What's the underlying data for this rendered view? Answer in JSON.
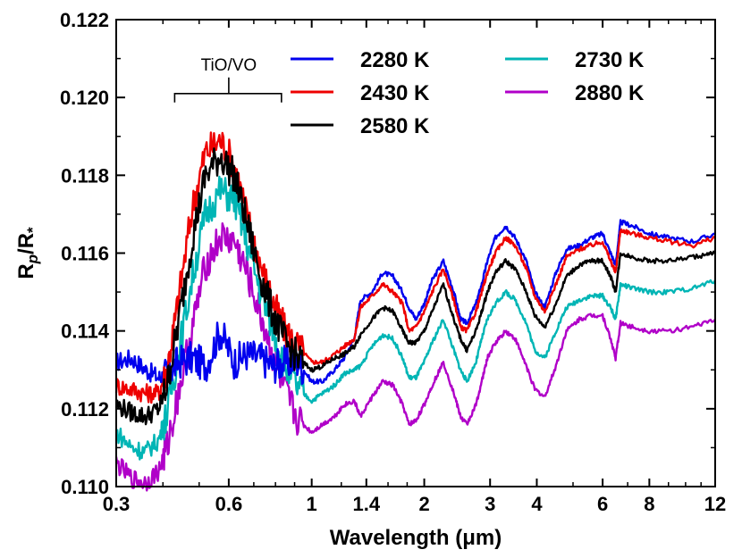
{
  "chart_data": {
    "type": "line",
    "title": "",
    "xlabel": "Wavelength (",
    "xlabel_unit": "μm",
    "xlabel_close": ")",
    "ylabel_main": "R",
    "ylabel_sub": "p",
    "ylabel_mid": "/R",
    "ylabel_star": "*",
    "xscale": "log",
    "xlim": [
      0.3,
      12
    ],
    "ylim": [
      0.11,
      0.122
    ],
    "x_ticks": [
      0.3,
      0.6,
      1,
      1.4,
      2,
      3,
      4,
      6,
      8,
      12
    ],
    "x_tick_labels": [
      "0.3",
      "0.6",
      "1",
      "1.4",
      "2",
      "3",
      "4",
      "6",
      "8",
      "12"
    ],
    "y_ticks": [
      0.11,
      0.112,
      0.114,
      0.116,
      0.118,
      0.12,
      0.122
    ],
    "y_tick_labels": [
      "0.110",
      "0.112",
      "0.114",
      "0.116",
      "0.118",
      "0.120",
      "0.122"
    ],
    "legend_position": "top-right",
    "annotation": {
      "text": "TiO/VO",
      "x_start": 0.43,
      "x_end": 0.83,
      "y": 0.1201
    },
    "series": [
      {
        "name": "2280 K",
        "color": "#0000ee",
        "values": [
          0.1132,
          0.1133,
          0.113,
          0.1128,
          0.1129,
          0.1132,
          0.1133,
          0.1131,
          0.114,
          0.1132,
          0.1134,
          0.1133,
          0.1131,
          0.1132,
          0.1132,
          0.1127,
          0.1127,
          0.113,
          0.1133,
          0.1138,
          0.1148,
          0.115,
          0.1155,
          0.1154,
          0.115,
          0.1146,
          0.1143,
          0.1147,
          0.1153,
          0.1158,
          0.115,
          0.1143,
          0.1142,
          0.1147,
          0.1152,
          0.1158,
          0.1164,
          0.1167,
          0.1164,
          0.1158,
          0.115,
          0.1146,
          0.1155,
          0.1161,
          0.1162,
          0.1164,
          0.1165,
          0.116,
          0.1157,
          0.1168,
          0.1167,
          0.1165,
          0.1164,
          0.1163,
          0.1165
        ]
      },
      {
        "name": "2430 K",
        "color": "#ee0000",
        "values": [
          0.1126,
          0.1125,
          0.1124,
          0.1124,
          0.113,
          0.1148,
          0.1172,
          0.1186,
          0.1189,
          0.1183,
          0.117,
          0.1157,
          0.1147,
          0.114,
          0.1136,
          0.1132,
          0.1132,
          0.1134,
          0.1136,
          0.1138,
          0.1146,
          0.1149,
          0.1152,
          0.115,
          0.1147,
          0.114,
          0.1141,
          0.1145,
          0.115,
          0.1156,
          0.1148,
          0.1141,
          0.114,
          0.1145,
          0.115,
          0.1155,
          0.116,
          0.1164,
          0.1162,
          0.1156,
          0.1149,
          0.1145,
          0.1152,
          0.1159,
          0.1161,
          0.1162,
          0.1163,
          0.1158,
          0.1155,
          0.1166,
          0.1165,
          0.1164,
          0.1163,
          0.1162,
          0.1164
        ]
      },
      {
        "name": "2580 K",
        "color": "#000000",
        "values": [
          0.1121,
          0.1119,
          0.1118,
          0.112,
          0.1126,
          0.1142,
          0.1164,
          0.118,
          0.1185,
          0.118,
          0.1168,
          0.1154,
          0.1144,
          0.1137,
          0.1133,
          0.113,
          0.1131,
          0.1133,
          0.1134,
          0.1136,
          0.1139,
          0.1143,
          0.1146,
          0.1145,
          0.114,
          0.1137,
          0.1137,
          0.114,
          0.1145,
          0.1152,
          0.1143,
          0.1138,
          0.1135,
          0.114,
          0.1145,
          0.115,
          0.1155,
          0.1158,
          0.1156,
          0.115,
          0.1144,
          0.1141,
          0.1147,
          0.1154,
          0.1157,
          0.1158,
          0.1158,
          0.1154,
          0.115,
          0.116,
          0.1159,
          0.1158,
          0.1158,
          0.1159,
          0.116
        ]
      },
      {
        "name": "2730 K",
        "color": "#00b5b5",
        "values": [
          0.1114,
          0.111,
          0.1109,
          0.1112,
          0.1119,
          0.1134,
          0.1154,
          0.117,
          0.1176,
          0.1174,
          0.1163,
          0.115,
          0.114,
          0.1131,
          0.1125,
          0.1122,
          0.1124,
          0.1126,
          0.1129,
          0.113,
          0.1131,
          0.1136,
          0.1139,
          0.1138,
          0.1133,
          0.1128,
          0.1128,
          0.1132,
          0.1137,
          0.1143,
          0.1135,
          0.113,
          0.1127,
          0.1132,
          0.1138,
          0.1143,
          0.1147,
          0.115,
          0.1148,
          0.1142,
          0.1135,
          0.1133,
          0.114,
          0.1146,
          0.1148,
          0.1149,
          0.1149,
          0.1146,
          0.1143,
          0.1152,
          0.1151,
          0.115,
          0.115,
          0.1151,
          0.1153
        ]
      },
      {
        "name": "2880 K",
        "color": "#b000c8",
        "values": [
          0.1106,
          0.1102,
          0.1101,
          0.1104,
          0.111,
          0.1124,
          0.1141,
          0.1157,
          0.1164,
          0.1163,
          0.1155,
          0.1144,
          0.1133,
          0.1124,
          0.1117,
          0.1114,
          0.1116,
          0.1118,
          0.1121,
          0.1122,
          0.1118,
          0.1123,
          0.1127,
          0.1126,
          0.1121,
          0.1116,
          0.1117,
          0.1121,
          0.1126,
          0.1132,
          0.1124,
          0.1118,
          0.1116,
          0.1121,
          0.1127,
          0.1133,
          0.1137,
          0.114,
          0.1138,
          0.1131,
          0.1125,
          0.1123,
          0.1131,
          0.114,
          0.1143,
          0.1144,
          0.1144,
          0.1138,
          0.1133,
          0.1142,
          0.1141,
          0.114,
          0.114,
          0.1141,
          0.1143
        ]
      }
    ],
    "x": [
      0.3,
      0.33,
      0.36,
      0.39,
      0.41,
      0.44,
      0.48,
      0.52,
      0.57,
      0.62,
      0.67,
      0.73,
      0.79,
      0.85,
      0.92,
      1.0,
      1.07,
      1.15,
      1.22,
      1.3,
      1.35,
      1.45,
      1.55,
      1.65,
      1.75,
      1.82,
      1.9,
      2.0,
      2.1,
      2.25,
      2.4,
      2.5,
      2.6,
      2.75,
      2.85,
      2.95,
      3.1,
      3.3,
      3.5,
      3.75,
      3.95,
      4.2,
      4.5,
      4.8,
      5.2,
      5.6,
      6.0,
      6.3,
      6.5,
      6.7,
      7.2,
      8.0,
      9.0,
      10.5,
      12.0
    ]
  }
}
